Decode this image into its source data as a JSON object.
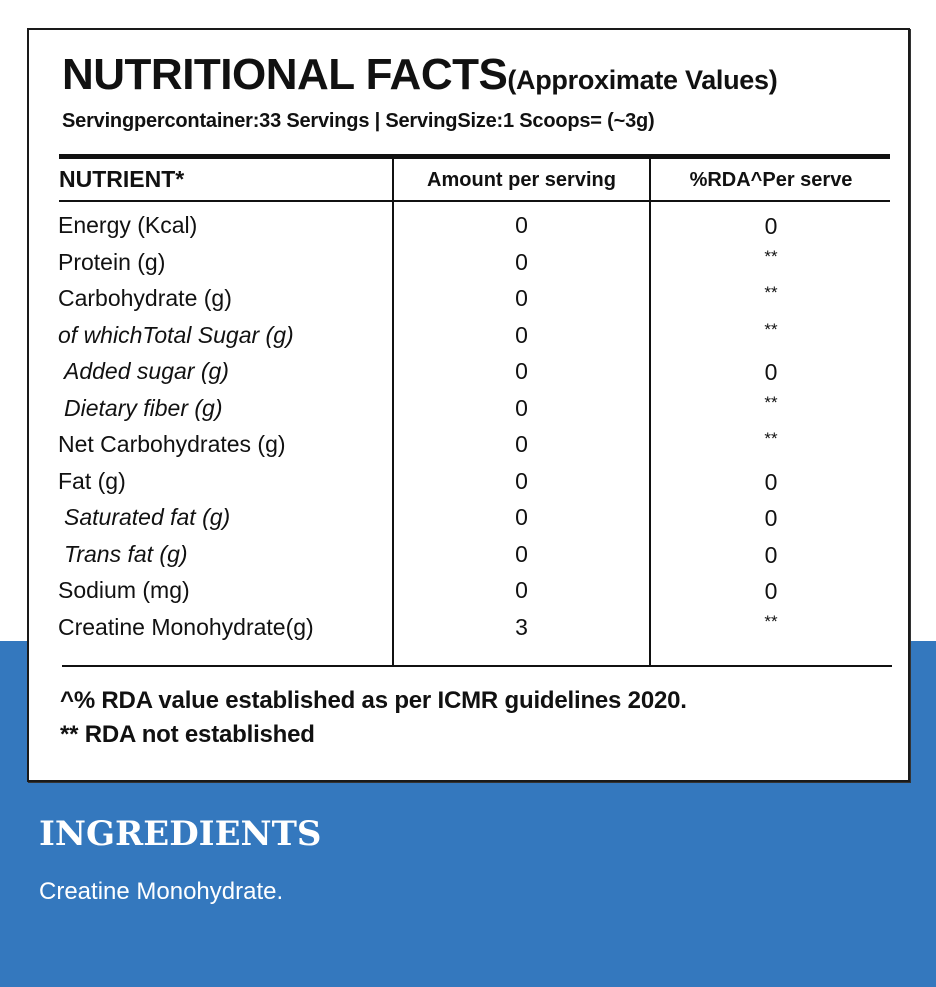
{
  "colors": {
    "accent_blue": "#3478be",
    "panel_bg": "#ffffff",
    "text": "#111111"
  },
  "nutrition": {
    "title": "NUTRITIONAL FACTS",
    "subtitle": "(Approximate Values)",
    "serving_info": "Servingpercontainer:33 Servings | ServingSize:1 Scoops= (~3g)",
    "headers": {
      "nutrient": "NUTRIENT*",
      "amount": "Amount per serving",
      "rda": "%RDA^Per serve"
    },
    "rows": [
      {
        "name": "Energy (Kcal)",
        "amount": "0",
        "rda": "0"
      },
      {
        "name": "Protein (g)",
        "amount": "0",
        "rda": "**"
      },
      {
        "name": "Carbohydrate (g)",
        "amount": "0",
        "rda": "**"
      },
      {
        "name": "of whichTotal Sugar (g)",
        "amount": "0",
        "rda": "**"
      },
      {
        "name": "Added sugar (g)",
        "amount": "0",
        "rda": "0"
      },
      {
        "name": "Dietary fiber (g)",
        "amount": "0",
        "rda": "**"
      },
      {
        "name": "Net Carbohydrates (g)",
        "amount": "0",
        "rda": "**"
      },
      {
        "name": "Fat (g)",
        "amount": "0",
        "rda": "0"
      },
      {
        "name": "Saturated fat (g)",
        "amount": "0",
        "rda": "0"
      },
      {
        "name": "Trans fat (g)",
        "amount": "0",
        "rda": "0"
      },
      {
        "name": "Sodium (mg)",
        "amount": "0",
        "rda": "0"
      },
      {
        "name": "Creatine Monohydrate(g)",
        "amount": "3",
        "rda": "**"
      }
    ],
    "footnotes": [
      "^% RDA value established as per ICMR guidelines 2020.",
      "** RDA not established"
    ]
  },
  "ingredients": {
    "title": "INGREDIENTS",
    "text": "Creatine Monohydrate."
  }
}
